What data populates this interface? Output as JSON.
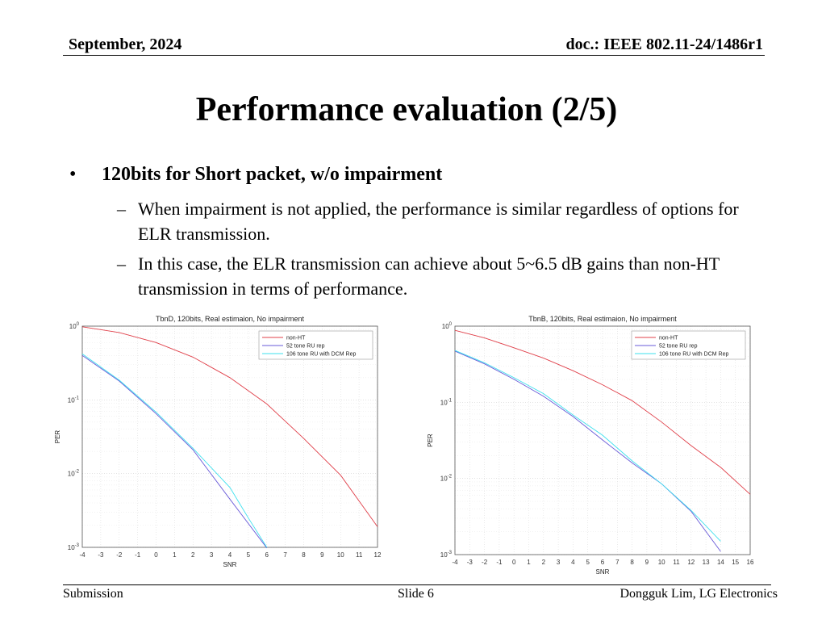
{
  "header": {
    "date": "September, 2024",
    "doc": "doc.: IEEE 802.11-24/1486r1"
  },
  "title": "Performance evaluation (2/5)",
  "bullet": {
    "text": "120bits for Short packet, w/o impairment",
    "subs": [
      "When impairment is not applied, the performance is similar regardless of options for ELR transmission.",
      "In this case, the ELR transmission can achieve about 5~6.5 dB gains than non-HT transmission in terms of performance."
    ]
  },
  "footer": {
    "left": "Submission",
    "center": "Slide 6",
    "right": "Dongguk Lim, LG Electronics"
  },
  "chart_data": [
    {
      "type": "line",
      "title": "TbnD, 120bits, Real estimaion, No impairment",
      "xlabel": "SNR",
      "ylabel": "PER",
      "xlim": [
        -4,
        12
      ],
      "xticks": [
        -4,
        -3,
        -2,
        -1,
        0,
        1,
        2,
        3,
        4,
        5,
        6,
        7,
        8,
        9,
        10,
        11,
        12
      ],
      "ylim": [
        0.001,
        1
      ],
      "yscale": "log",
      "yticks": [
        "10^0",
        "10^-1",
        "10^-2",
        "10^-3"
      ],
      "grid": true,
      "legend_position": "top-right",
      "series": [
        {
          "name": "non-HT",
          "color": "#e0404a",
          "x": [
            -4,
            -2,
            0,
            2,
            4,
            6,
            8,
            10,
            12
          ],
          "y": [
            0.98,
            0.82,
            0.6,
            0.38,
            0.2,
            0.088,
            0.03,
            0.0095,
            0.0019
          ]
        },
        {
          "name": "52 tone RU rep",
          "color": "#6a5bd8",
          "x": [
            -4,
            -2,
            0,
            2,
            4,
            6
          ],
          "y": [
            0.4,
            0.18,
            0.065,
            0.021,
            0.0045,
            0.00098
          ]
        },
        {
          "name": "106 tone RU with DCM Rep",
          "color": "#3ee0ee",
          "x": [
            -4,
            -2,
            0,
            2,
            4,
            5,
            6
          ],
          "y": [
            0.42,
            0.185,
            0.068,
            0.022,
            0.0065,
            0.0025,
            0.001
          ]
        }
      ]
    },
    {
      "type": "line",
      "title": "TbnB, 120bits, Real estimaion, No impairment",
      "xlabel": "SNR",
      "ylabel": "PER",
      "xlim": [
        -4,
        16
      ],
      "xticks": [
        -4,
        -3,
        -2,
        -1,
        0,
        1,
        2,
        3,
        4,
        5,
        6,
        7,
        8,
        9,
        10,
        11,
        12,
        13,
        14,
        15,
        16
      ],
      "ylim": [
        0.001,
        1
      ],
      "yscale": "log",
      "yticks": [
        "10^0",
        "10^-1",
        "10^-2",
        "10^-3"
      ],
      "grid": true,
      "legend_position": "top-right",
      "series": [
        {
          "name": "non-HT",
          "color": "#e0404a",
          "x": [
            -4,
            -2,
            0,
            2,
            4,
            6,
            8,
            10,
            12,
            14,
            16
          ],
          "y": [
            0.88,
            0.7,
            0.52,
            0.38,
            0.26,
            0.17,
            0.105,
            0.055,
            0.027,
            0.014,
            0.0062
          ]
        },
        {
          "name": "52 tone RU rep",
          "color": "#6a5bd8",
          "x": [
            -4,
            -2,
            0,
            2,
            4,
            6,
            8,
            10,
            12,
            14
          ],
          "y": [
            0.47,
            0.32,
            0.2,
            0.12,
            0.065,
            0.032,
            0.016,
            0.0085,
            0.0037,
            0.0011
          ]
        },
        {
          "name": "106 tone RU with DCM Rep",
          "color": "#3ee0ee",
          "x": [
            -4,
            -2,
            0,
            2,
            4,
            6,
            8,
            10,
            12,
            14
          ],
          "y": [
            0.48,
            0.33,
            0.21,
            0.13,
            0.068,
            0.037,
            0.017,
            0.0085,
            0.0038,
            0.0015
          ]
        }
      ]
    }
  ]
}
